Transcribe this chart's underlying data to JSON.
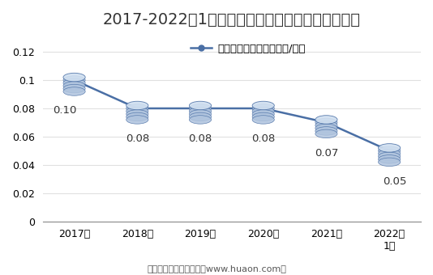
{
  "title": "2017-2022年1月郑州商品交易所白糖期权成交均价",
  "legend_label": "白糖期权成交均价（万元/手）",
  "x_labels": [
    "2017年",
    "2018年",
    "2019年",
    "2020年",
    "2021年",
    "2022年\n1月"
  ],
  "y_values": [
    0.1,
    0.08,
    0.08,
    0.08,
    0.07,
    0.05
  ],
  "data_labels": [
    "0.10",
    "0.08",
    "0.08",
    "0.08",
    "0.07",
    "0.05"
  ],
  "line_color": "#4a6fa5",
  "marker_color": "#4a6fa5",
  "ylim": [
    0,
    0.13
  ],
  "yticks": [
    0,
    0.02,
    0.04,
    0.06,
    0.08,
    0.1,
    0.12
  ],
  "footer": "制图：华经产业研究院（www.huaon.com）",
  "bg_color": "#ffffff",
  "title_fontsize": 14,
  "label_fontsize": 9.5,
  "tick_fontsize": 9,
  "footer_fontsize": 8
}
